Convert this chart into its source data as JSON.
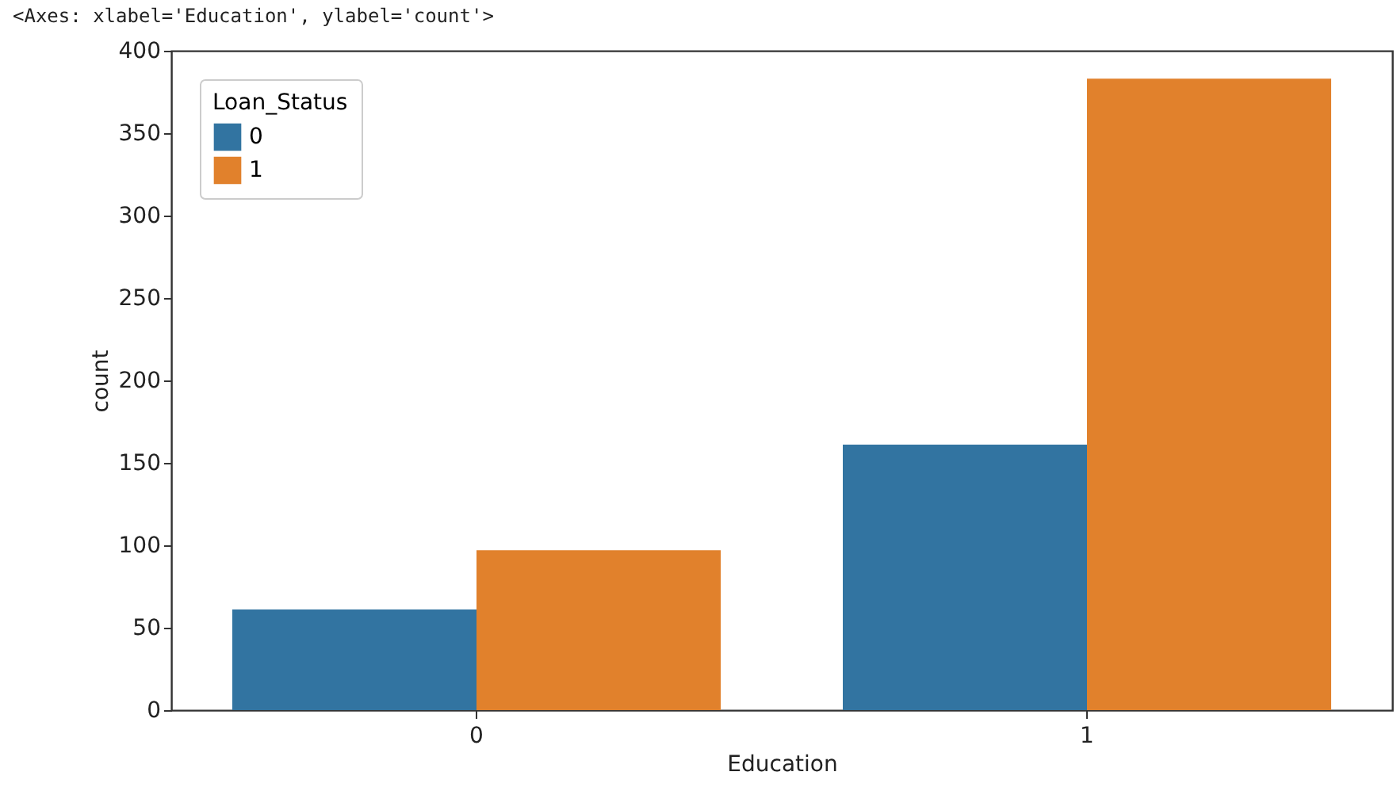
{
  "chart_data": {
    "type": "bar",
    "annotations": [
      "<Axes: xlabel='Education', ylabel='count'>"
    ],
    "xlabel": "Education",
    "ylabel": "count",
    "legend_title": "Loan_Status",
    "categories": [
      "0",
      "1"
    ],
    "series": [
      {
        "name": "0",
        "color": "#3274a1",
        "values": [
          61,
          161
        ]
      },
      {
        "name": "1",
        "color": "#e1812c",
        "values": [
          97,
          383
        ]
      }
    ],
    "ylim": [
      0,
      400
    ],
    "yticks": [
      0,
      50,
      100,
      150,
      200,
      250,
      300,
      350,
      400
    ],
    "grid": false,
    "legend": "top left"
  }
}
